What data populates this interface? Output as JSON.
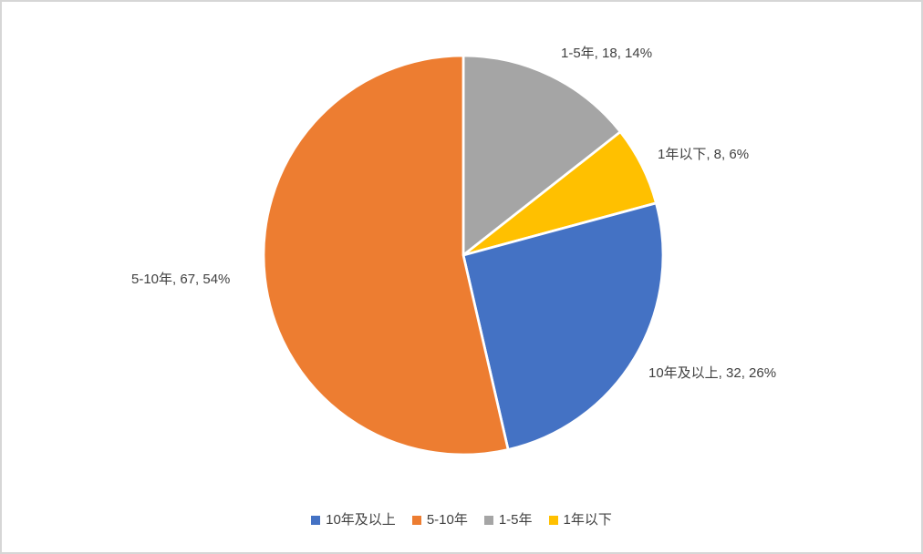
{
  "chart_data": {
    "type": "pie",
    "title": "",
    "legend_position": "bottom",
    "start_angle": "12-oclock",
    "direction": "clockwise",
    "grid": false,
    "total": 125,
    "categories": [
      "10年及以上",
      "5-10年",
      "1-5年",
      "1年以下"
    ],
    "values": [
      32,
      67,
      18,
      8
    ],
    "percent_labels": [
      "26%",
      "54%",
      "14%",
      "6%"
    ],
    "colors": [
      "#4472C4",
      "#ED7D31",
      "#A5A5A5",
      "#FFC000"
    ],
    "slices_draw_order": [
      {
        "name": "1-5年",
        "value": 18,
        "pct": "14%",
        "color": "#A5A5A5",
        "label": "1-5年, 18, 14%"
      },
      {
        "name": "1年以下",
        "value": 8,
        "pct": "6%",
        "color": "#FFC000",
        "label": "1年以下, 8, 6%"
      },
      {
        "name": "10年及以上",
        "value": 32,
        "pct": "26%",
        "color": "#4472C4",
        "label": "10年及以上, 32, 26%"
      },
      {
        "name": "5-10年",
        "value": 67,
        "pct": "54%",
        "color": "#ED7D31",
        "label": "5-10年, 67, 54%"
      }
    ],
    "legend": [
      {
        "name": "10年及以上",
        "color": "#4472C4"
      },
      {
        "name": "5-10年",
        "color": "#ED7D31"
      },
      {
        "name": "1-5年",
        "color": "#A5A5A5"
      },
      {
        "name": "1年以下",
        "color": "#FFC000"
      }
    ],
    "separator_color": "#FFFFFF",
    "label_text_color": "#404040",
    "canvas_border_color": "#D6D6D6"
  }
}
